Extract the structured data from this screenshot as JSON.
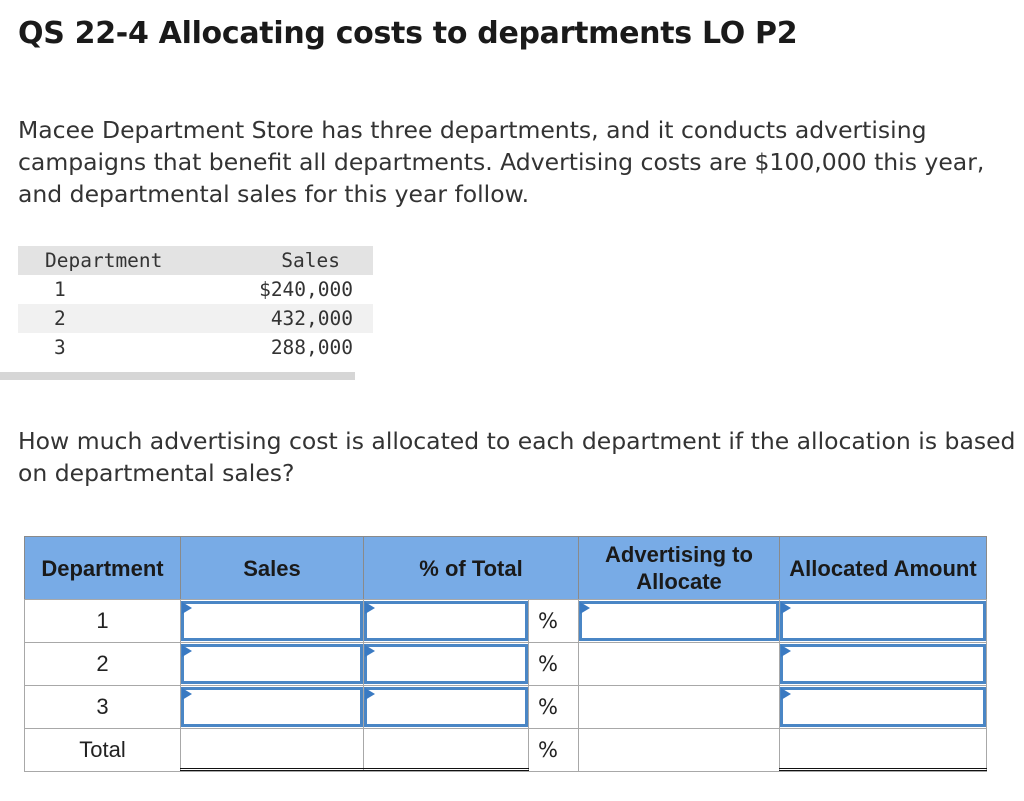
{
  "title": "QS 22-4 Allocating costs to departments LO P2",
  "intro": "Macee Department Store has three departments, and it conducts advertising campaigns that benefit all departments. Advertising costs are $100,000 this year, and departmental sales for this year follow.",
  "data_table": {
    "headers": [
      "Department",
      "Sales"
    ],
    "rows": [
      {
        "department": "1",
        "sales": "$240,000"
      },
      {
        "department": "2",
        "sales": "432,000"
      },
      {
        "department": "3",
        "sales": "288,000"
      }
    ]
  },
  "question": "How much advertising cost is allocated to each department if the allocation is based on departmental sales?",
  "answer_table": {
    "headers": {
      "department": "Department",
      "sales": "Sales",
      "pct_total": "% of Total",
      "advertising": "Advertising to Allocate",
      "allocated": "Allocated Amount"
    },
    "rows": [
      {
        "department": "1",
        "pct_symbol": "%"
      },
      {
        "department": "2",
        "pct_symbol": "%"
      },
      {
        "department": "3",
        "pct_symbol": "%"
      },
      {
        "department": "Total",
        "pct_symbol": "%"
      }
    ]
  }
}
